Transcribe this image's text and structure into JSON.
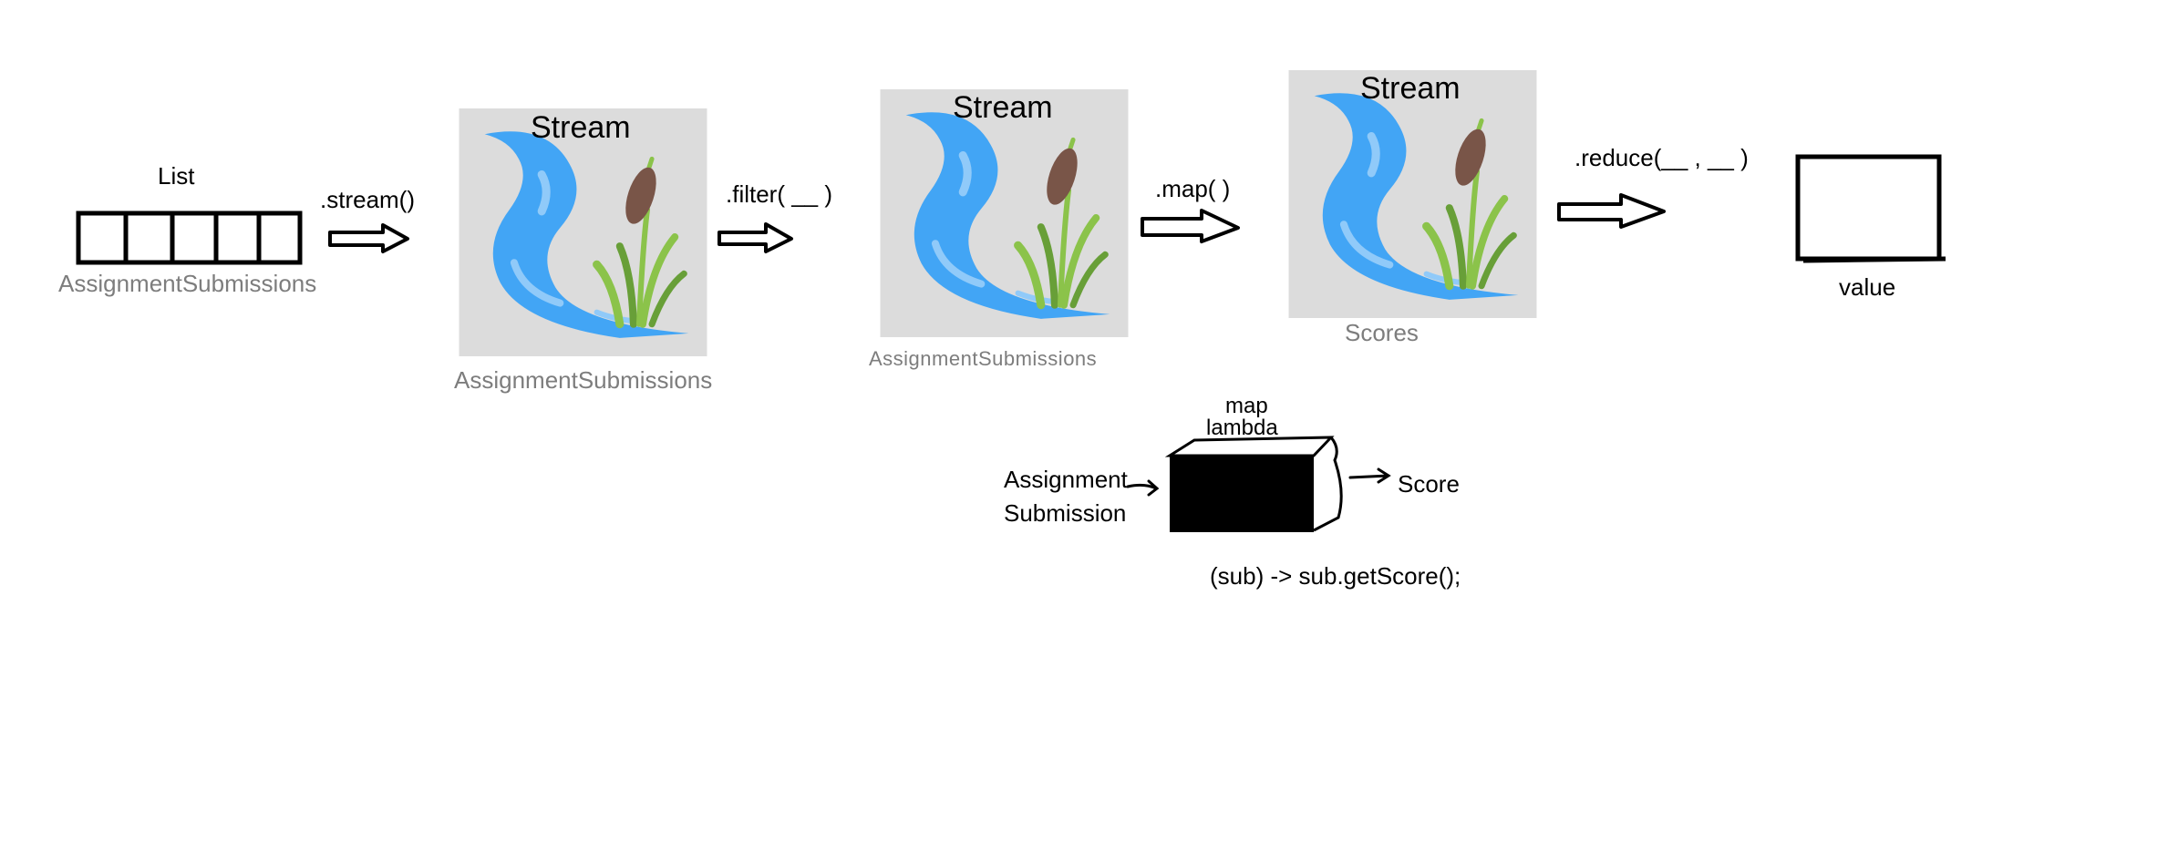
{
  "list_block": {
    "title": "List",
    "caption": "AssignmentSubmissions",
    "cell_count": 5
  },
  "operations": {
    "stream": ".stream()",
    "filter": ".filter( __ )",
    "map": ".map( )",
    "reduce": ".reduce(__ , __ )"
  },
  "stream_panels": [
    {
      "title": "Stream",
      "caption": "AssignmentSubmissions"
    },
    {
      "title": "Stream",
      "caption": "AssignmentSubmissions"
    },
    {
      "title": "Stream",
      "caption": "Scores"
    }
  ],
  "value_box": {
    "caption": "value"
  },
  "lambda_detail": {
    "title_line1": "map",
    "title_line2": "lambda",
    "input_line1": "Assignment",
    "input_line2": "Submission",
    "output": "Score",
    "code": "(sub) -> sub.getScore();"
  },
  "colors": {
    "panel_bg": "#dcdcdc",
    "water": "#42a5f5",
    "water_highlight": "#90caf9",
    "grass": "#8bc34a",
    "grass_dark": "#689f38",
    "cattail": "#795548",
    "caption_grey": "#7d7d7d"
  }
}
